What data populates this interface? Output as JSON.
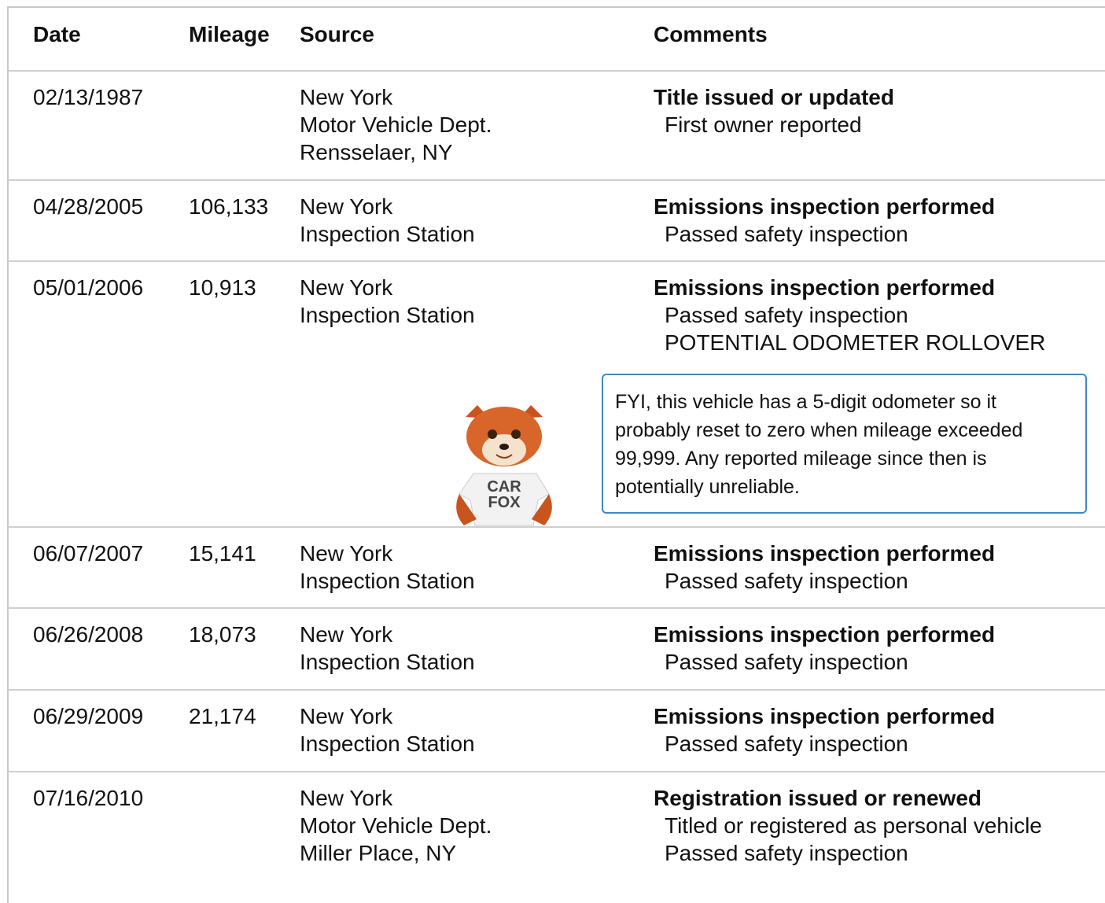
{
  "table": {
    "header": [
      "Date",
      "Mileage",
      "Source",
      "Comments"
    ],
    "rows": [
      {
        "date": "02/13/1987",
        "source": [
          "New York",
          "Motor Vehicle Dept.",
          "Rensselaer, NY"
        ],
        "comment_title": "Title issued or updated",
        "comment_details": [
          "First owner reported"
        ]
      },
      {
        "date": "04/28/2005",
        "mileage": "106,133",
        "source": [
          "New York",
          "Inspection Station"
        ],
        "comment_title": "Emissions inspection performed",
        "comment_details": [
          "Passed safety inspection"
        ]
      },
      {
        "date": "05/01/2006",
        "mileage": "10,913",
        "source": [
          "New York",
          "Inspection Station"
        ],
        "comment_title": "Emissions inspection performed",
        "comment_details": [
          "Passed safety inspection",
          "POTENTIAL ODOMETER ROLLOVER"
        ],
        "note": "FYI, this vehicle has a 5-digit odometer so it probably reset to zero when mileage exceeded 99,999. Any reported mileage since then is potentially unreliable.",
        "mascot_shirt": [
          "CAR",
          "FOX"
        ]
      },
      {
        "date": "06/07/2007",
        "mileage": "15,141",
        "source": [
          "New York",
          "Inspection Station"
        ],
        "comment_title": "Emissions inspection performed",
        "comment_details": [
          "Passed safety inspection"
        ]
      },
      {
        "date": "06/26/2008",
        "mileage": "18,073",
        "source": [
          "New York",
          "Inspection Station"
        ],
        "comment_title": "Emissions inspection performed",
        "comment_details": [
          "Passed safety inspection"
        ]
      },
      {
        "date": "06/29/2009",
        "mileage": "21,174",
        "source": [
          "New York",
          "Inspection Station"
        ],
        "comment_title": "Emissions inspection performed",
        "comment_details": [
          "Passed safety inspection"
        ]
      },
      {
        "date": "07/16/2010",
        "source": [
          "New York",
          "Motor Vehicle Dept.",
          "Miller Place, NY"
        ],
        "comment_title": "Registration issued or renewed",
        "comment_details": [
          "Titled or registered as personal vehicle",
          "Passed safety inspection"
        ]
      }
    ]
  }
}
